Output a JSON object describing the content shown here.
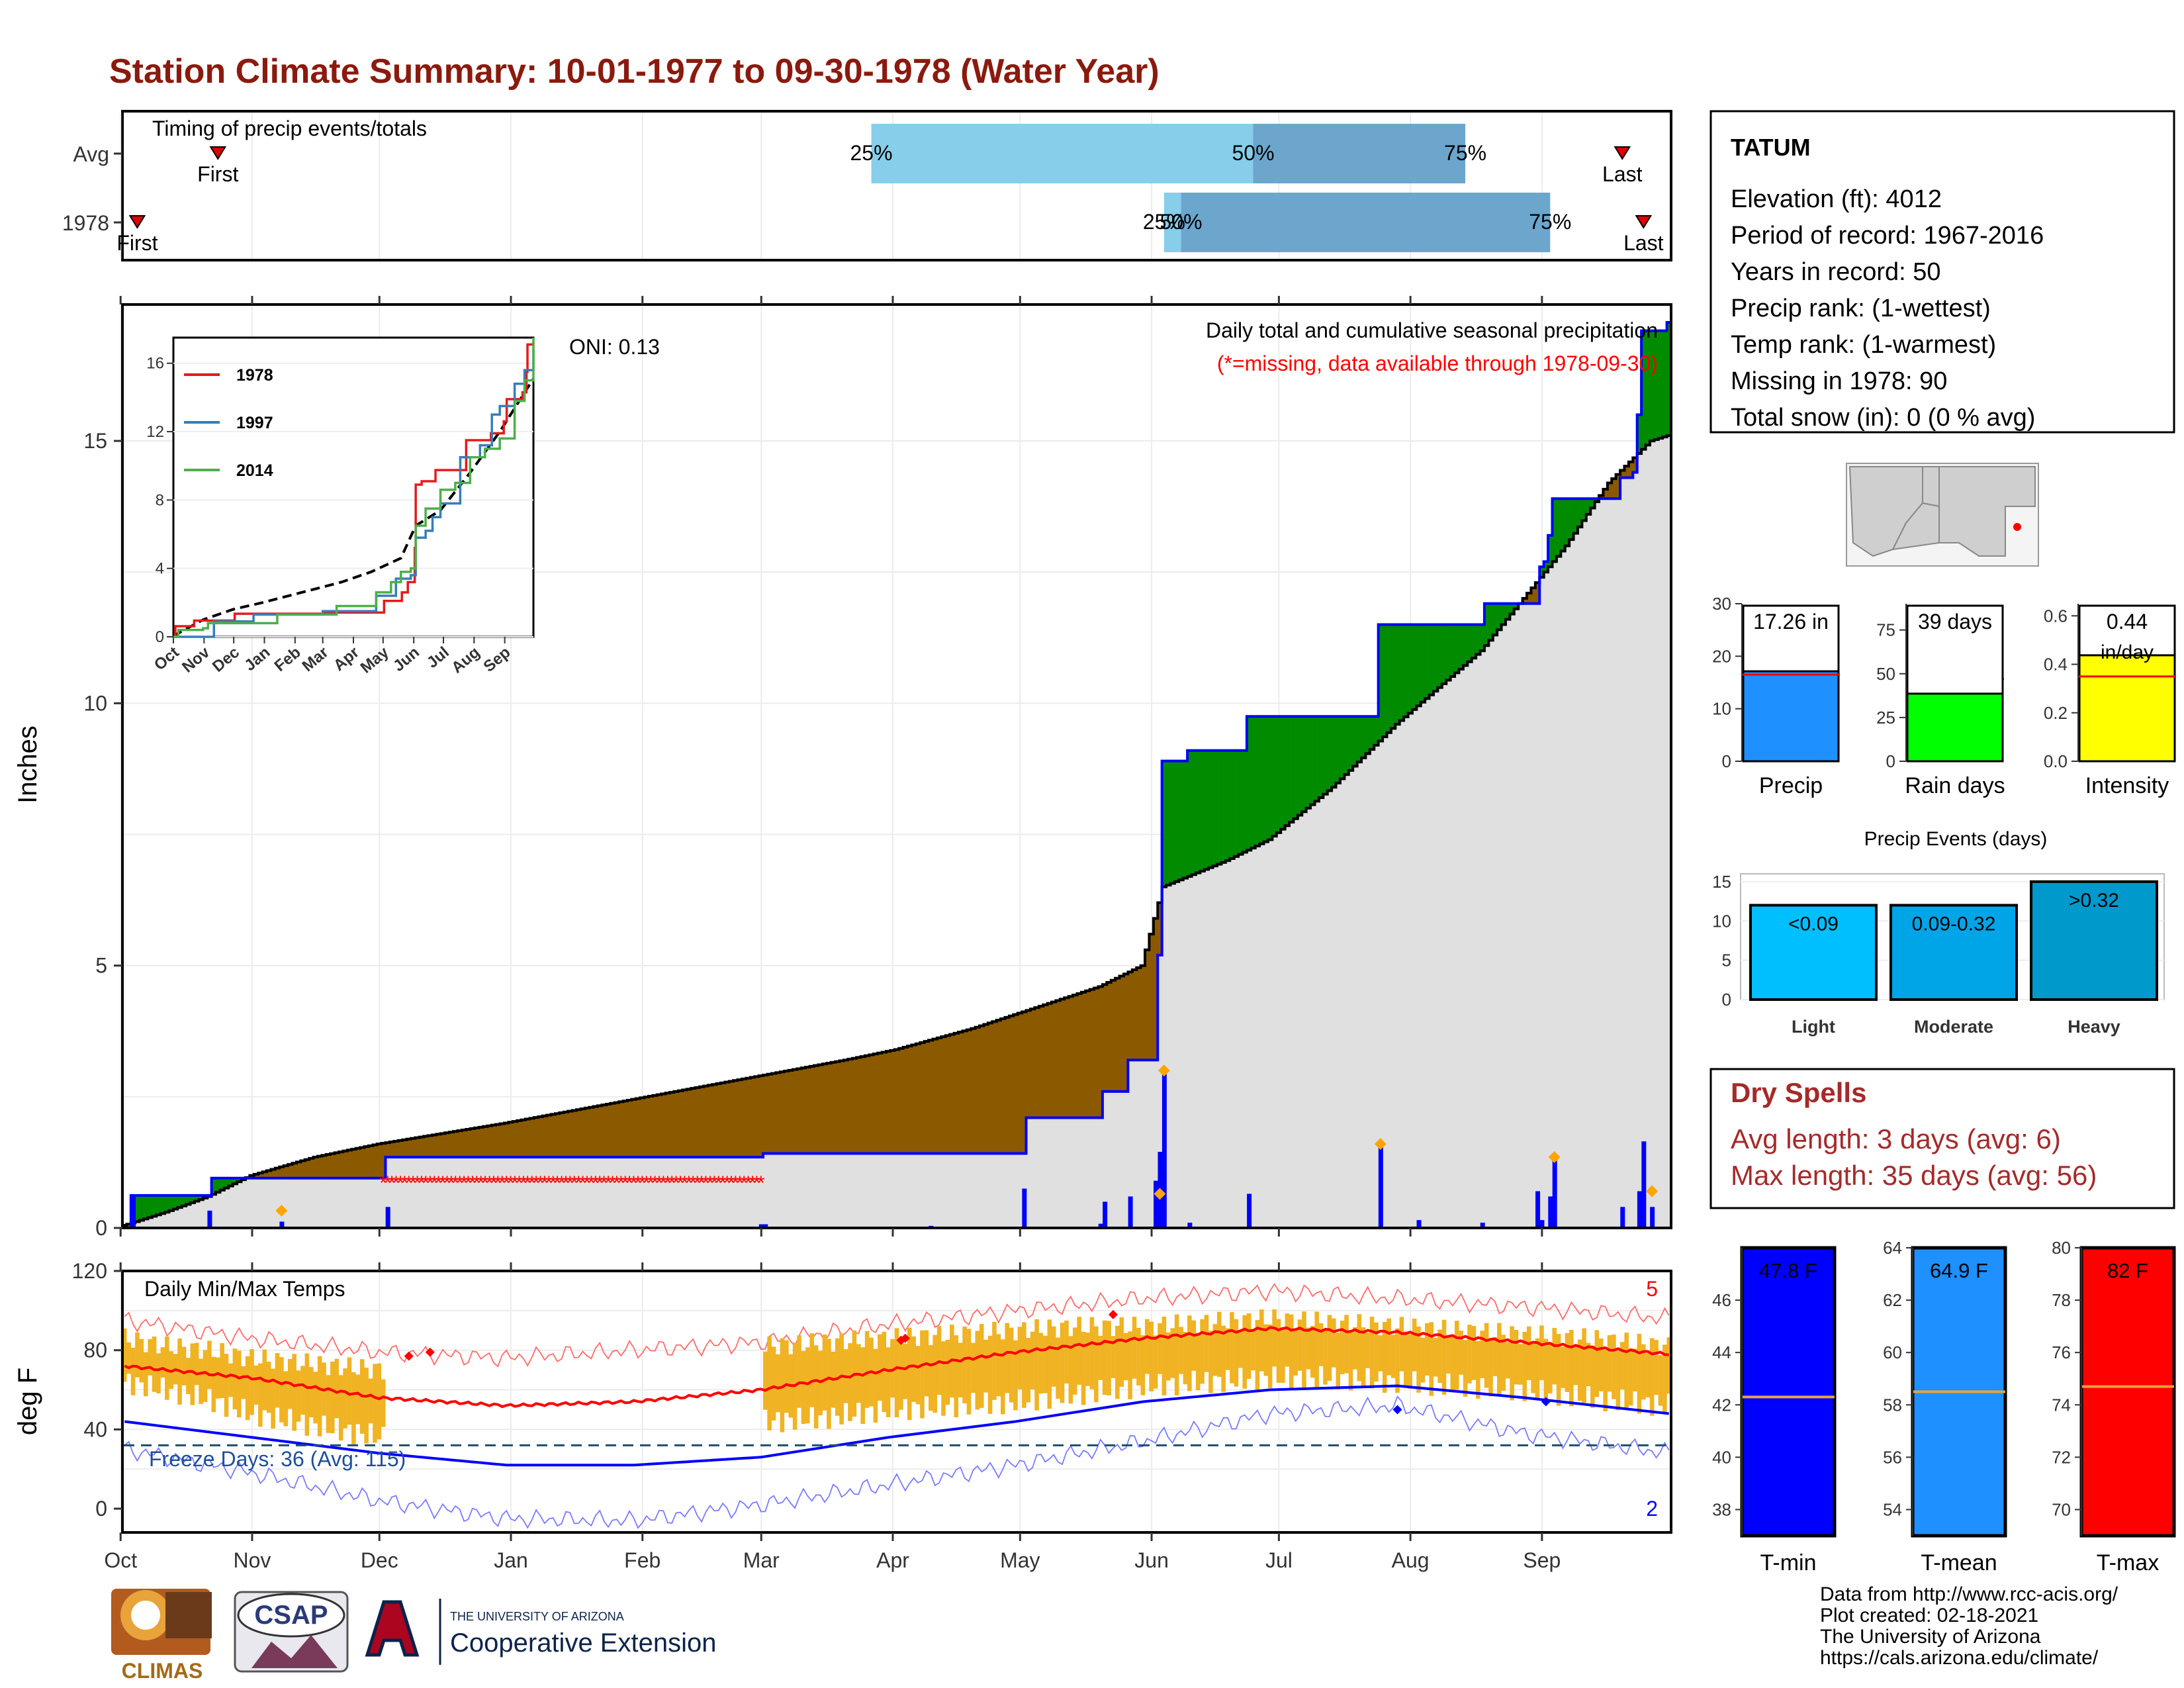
{
  "page": {
    "title": "Station Climate Summary: 10-01-1977 to 09-30-1978 (Water Year)",
    "title_color": "#8B1A0E"
  },
  "timing": {
    "label": "Timing of precip events/totals",
    "rows": [
      {
        "name": "Avg",
        "first_label": "First",
        "last_label": "Last",
        "first_doy": 22,
        "last_doy": 353,
        "q25_doy": 176,
        "q50_doy": 266,
        "q75_doy": 316,
        "q25_label": "25%",
        "q50_label": "50%",
        "q75_label": "75%"
      },
      {
        "name": "1978",
        "first_label": "First",
        "last_label": "Last",
        "first_doy": 3,
        "last_doy": 358,
        "q25_doy": 245,
        "q50_doy": 249,
        "q75_doy": 336,
        "q25_label": "25%",
        "q50_label": "50%",
        "q75_label": "75%"
      }
    ],
    "light_color": "#87CEEB",
    "dark_color": "#6CA6CD"
  },
  "station": {
    "name": "TATUM",
    "lines": [
      "Elevation (ft): 4012",
      "Period of record: 1967-2016",
      "Years in record: 50",
      "Precip rank:  (1-wettest)",
      "Temp rank:  (1-warmest)",
      "Missing in 1978: 90",
      "Total snow (in): 0 (0 % avg)"
    ]
  },
  "months": [
    "Oct",
    "Nov",
    "Dec",
    "Jan",
    "Feb",
    "Mar",
    "Apr",
    "May",
    "Jun",
    "Jul",
    "Aug",
    "Sep"
  ],
  "precip": {
    "ylabel": "Inches",
    "title": "Daily total and cumulative seasonal precipitation",
    "subtitle": "(*=missing, data available through 1978-09-30)",
    "oni": "ONI: 0.13",
    "ylim": [
      0,
      17.6
    ],
    "yticks": [
      0,
      5,
      10,
      15
    ],
    "above_color": "#008B00",
    "below_color": "#8B5A00",
    "fill_color": "#E0E0E0",
    "missing_start_doy": 61,
    "missing_end_doy": 150,
    "avg_cum": [
      [
        0,
        0.05
      ],
      [
        3,
        0.12
      ],
      [
        10,
        0.3
      ],
      [
        20,
        0.6
      ],
      [
        30,
        1.0
      ],
      [
        45,
        1.35
      ],
      [
        60,
        1.6
      ],
      [
        75,
        1.8
      ],
      [
        90,
        2.0
      ],
      [
        110,
        2.3
      ],
      [
        130,
        2.6
      ],
      [
        150,
        2.9
      ],
      [
        170,
        3.2
      ],
      [
        182,
        3.4
      ],
      [
        200,
        3.8
      ],
      [
        215,
        4.2
      ],
      [
        230,
        4.6
      ],
      [
        240,
        5.0
      ],
      [
        245,
        6.5
      ],
      [
        260,
        7.0
      ],
      [
        270,
        7.4
      ],
      [
        285,
        8.4
      ],
      [
        300,
        9.6
      ],
      [
        310,
        10.3
      ],
      [
        320,
        11.0
      ],
      [
        330,
        12.0
      ],
      [
        340,
        13.0
      ],
      [
        350,
        14.2
      ],
      [
        360,
        15.0
      ],
      [
        364,
        15.1
      ]
    ],
    "obs_cum": [
      [
        0,
        0
      ],
      [
        2,
        0.62
      ],
      [
        20,
        0.62
      ],
      [
        21,
        0.95
      ],
      [
        61,
        0.95
      ],
      [
        62,
        1.35
      ],
      [
        150,
        1.35
      ],
      [
        151,
        1.42
      ],
      [
        212,
        1.42
      ],
      [
        213,
        2.1
      ],
      [
        230,
        2.1
      ],
      [
        231,
        2.6
      ],
      [
        236,
        2.6
      ],
      [
        237,
        3.2
      ],
      [
        243,
        3.2
      ],
      [
        244,
        5.2
      ],
      [
        245,
        8.9
      ],
      [
        250,
        8.9
      ],
      [
        251,
        9.1
      ],
      [
        264,
        9.1
      ],
      [
        265,
        9.75
      ],
      [
        295,
        9.75
      ],
      [
        296,
        11.5
      ],
      [
        320,
        11.5
      ],
      [
        321,
        11.9
      ],
      [
        333,
        11.9
      ],
      [
        334,
        12.6
      ],
      [
        335,
        12.7
      ],
      [
        336,
        13.2
      ],
      [
        337,
        13.9
      ],
      [
        352,
        13.9
      ],
      [
        353,
        14.3
      ],
      [
        356,
        14.4
      ],
      [
        357,
        15.5
      ],
      [
        358,
        17.1
      ],
      [
        364,
        17.26
      ]
    ],
    "daily_bars": [
      [
        2,
        0.62
      ],
      [
        20,
        0.33
      ],
      [
        37,
        0.12
      ],
      [
        62,
        0.4
      ],
      [
        150,
        0.07
      ],
      [
        151,
        0.07
      ],
      [
        190,
        0.04
      ],
      [
        212,
        0.75
      ],
      [
        230,
        0.08
      ],
      [
        231,
        0.5
      ],
      [
        237,
        0.6
      ],
      [
        243,
        0.9
      ],
      [
        244,
        1.45
      ],
      [
        245,
        3.0
      ],
      [
        251,
        0.1
      ],
      [
        265,
        0.65
      ],
      [
        296,
        1.6
      ],
      [
        305,
        0.15
      ],
      [
        320,
        0.1
      ],
      [
        333,
        0.7
      ],
      [
        334,
        0.15
      ],
      [
        336,
        0.6
      ],
      [
        337,
        1.35
      ],
      [
        353,
        0.4
      ],
      [
        357,
        0.7
      ],
      [
        358,
        1.65
      ],
      [
        360,
        0.4
      ]
    ],
    "diamonds": [
      [
        37,
        0.33,
        "#FFA500"
      ],
      [
        245,
        3.0,
        "#FFA500"
      ],
      [
        244,
        0.65,
        "#FFA500"
      ],
      [
        296,
        1.6,
        "#FFA500"
      ],
      [
        337,
        1.35,
        "#FFA500"
      ],
      [
        360,
        0.7,
        "#FFA500"
      ]
    ]
  },
  "inset": {
    "yticks": [
      0,
      4,
      8,
      12,
      16
    ],
    "ylim": [
      0,
      17.5
    ],
    "legend": [
      {
        "name": "1978",
        "color": "#E41A1C"
      },
      {
        "name": "1997",
        "color": "#377EB8"
      },
      {
        "name": "2014",
        "color": "#4DAF4A"
      }
    ],
    "avg_color": "#000000",
    "series": {
      "1978": [
        [
          0,
          0
        ],
        [
          2,
          0.62
        ],
        [
          20,
          0.62
        ],
        [
          21,
          0.95
        ],
        [
          61,
          0.95
        ],
        [
          62,
          1.35
        ],
        [
          150,
          1.35
        ],
        [
          151,
          1.42
        ],
        [
          212,
          1.42
        ],
        [
          213,
          2.1
        ],
        [
          230,
          2.1
        ],
        [
          231,
          2.6
        ],
        [
          237,
          3.2
        ],
        [
          243,
          3.2
        ],
        [
          244,
          5.2
        ],
        [
          245,
          8.9
        ],
        [
          251,
          9.1
        ],
        [
          265,
          9.75
        ],
        [
          296,
          11.5
        ],
        [
          321,
          11.9
        ],
        [
          334,
          12.6
        ],
        [
          337,
          13.9
        ],
        [
          353,
          14.3
        ],
        [
          357,
          15.5
        ],
        [
          358,
          17.1
        ],
        [
          364,
          17.26
        ]
      ],
      "1997": [
        [
          0,
          0
        ],
        [
          40,
          0
        ],
        [
          41,
          0.9
        ],
        [
          80,
          0.9
        ],
        [
          81,
          1.3
        ],
        [
          150,
          1.3
        ],
        [
          151,
          1.5
        ],
        [
          200,
          1.5
        ],
        [
          205,
          2.4
        ],
        [
          220,
          2.4
        ],
        [
          225,
          3.4
        ],
        [
          240,
          3.6
        ],
        [
          245,
          5.8
        ],
        [
          255,
          6.2
        ],
        [
          262,
          7.0
        ],
        [
          270,
          7.8
        ],
        [
          290,
          10.5
        ],
        [
          310,
          11.2
        ],
        [
          322,
          13.0
        ],
        [
          330,
          13.5
        ],
        [
          345,
          14.8
        ],
        [
          355,
          15.6
        ],
        [
          364,
          16.8
        ]
      ],
      "2014": [
        [
          0,
          0
        ],
        [
          5,
          0.4
        ],
        [
          30,
          0.5
        ],
        [
          35,
          0.8
        ],
        [
          100,
          0.8
        ],
        [
          105,
          1.3
        ],
        [
          160,
          1.3
        ],
        [
          165,
          1.8
        ],
        [
          200,
          1.8
        ],
        [
          205,
          2.6
        ],
        [
          220,
          3.2
        ],
        [
          230,
          3.8
        ],
        [
          240,
          4.0
        ],
        [
          245,
          6.5
        ],
        [
          255,
          7.5
        ],
        [
          270,
          8.6
        ],
        [
          285,
          9.0
        ],
        [
          300,
          10.5
        ],
        [
          315,
          11.0
        ],
        [
          330,
          11.6
        ],
        [
          345,
          13.8
        ],
        [
          355,
          15.0
        ],
        [
          364,
          17.5
        ]
      ],
      "avg": [
        [
          0,
          0.05
        ],
        [
          30,
          1.0
        ],
        [
          60,
          1.6
        ],
        [
          90,
          2.0
        ],
        [
          130,
          2.6
        ],
        [
          170,
          3.2
        ],
        [
          200,
          3.8
        ],
        [
          230,
          4.6
        ],
        [
          245,
          6.5
        ],
        [
          270,
          7.4
        ],
        [
          300,
          9.6
        ],
        [
          330,
          12.0
        ],
        [
          364,
          15.1
        ]
      ]
    }
  },
  "minibars": {
    "precip": {
      "label": "Precip",
      "value_label": "17.26 in",
      "value": 17.26,
      "avg": 16.5,
      "ylim": [
        0,
        30
      ],
      "yticks": [
        0,
        10,
        20,
        30
      ],
      "color": "#1E90FF"
    },
    "raindays": {
      "label": "Rain days",
      "value_label": "39 days",
      "value": 39,
      "avg": 47,
      "ylim": [
        0,
        90
      ],
      "yticks": [
        0,
        25,
        50,
        75
      ],
      "color": "#00FF00"
    },
    "intensity": {
      "label": "Intensity",
      "value_label": "0.44",
      "value_unit": "in/day",
      "value": 0.44,
      "avg": 0.35,
      "ylim": [
        0,
        0.65
      ],
      "yticks": [
        "0.0",
        "0.2",
        "0.4",
        "0.6"
      ],
      "color": "#FFFF00"
    }
  },
  "events": {
    "title": "Precip Events (days)",
    "ylim": [
      0,
      16
    ],
    "yticks": [
      0,
      5,
      10,
      15
    ],
    "bars": [
      {
        "category": "Light",
        "value": 12,
        "label": "<0.09",
        "color": "#00BFFF"
      },
      {
        "category": "Moderate",
        "value": 12,
        "label": "0.09-0.32",
        "color": "#00A5E8"
      },
      {
        "category": "Heavy",
        "value": 15,
        "label": ">0.32",
        "color": "#0099CC"
      }
    ]
  },
  "dryspells": {
    "title": "Dry Spells",
    "avg_line": "Avg length: 3 days (avg: 6)",
    "max_line": "Max length: 35 days (avg: 56)",
    "color": "#A52A2A"
  },
  "temps": {
    "ylabel": "deg F",
    "title": "Daily Min/Max Temps",
    "ylim": [
      -12,
      120
    ],
    "yticks": [
      0,
      40,
      80,
      120
    ],
    "freeze_label": "Freeze Days: 36 (Avg: 115)",
    "freeze_line": 32,
    "count_top": "5",
    "count_bottom": "2",
    "missing_start_doy": 62,
    "missing_end_doy": 150,
    "bar_color": "#F0B323",
    "avg_max": [
      [
        0,
        72
      ],
      [
        30,
        66
      ],
      [
        60,
        56
      ],
      [
        90,
        52
      ],
      [
        120,
        54
      ],
      [
        150,
        60
      ],
      [
        180,
        70
      ],
      [
        210,
        79
      ],
      [
        240,
        86
      ],
      [
        270,
        91
      ],
      [
        300,
        89
      ],
      [
        330,
        84
      ],
      [
        364,
        78
      ]
    ],
    "avg_min": [
      [
        0,
        44
      ],
      [
        30,
        36
      ],
      [
        60,
        28
      ],
      [
        90,
        22
      ],
      [
        120,
        22
      ],
      [
        150,
        26
      ],
      [
        180,
        36
      ],
      [
        210,
        44
      ],
      [
        240,
        54
      ],
      [
        270,
        60
      ],
      [
        300,
        62
      ],
      [
        330,
        56
      ],
      [
        364,
        48
      ]
    ],
    "rec_max": [
      [
        0,
        95
      ],
      [
        30,
        86
      ],
      [
        60,
        79
      ],
      [
        90,
        76
      ],
      [
        120,
        80
      ],
      [
        150,
        84
      ],
      [
        180,
        93
      ],
      [
        210,
        100
      ],
      [
        240,
        106
      ],
      [
        270,
        110
      ],
      [
        300,
        106
      ],
      [
        330,
        102
      ],
      [
        364,
        96
      ]
    ],
    "rec_min": [
      [
        0,
        30
      ],
      [
        30,
        18
      ],
      [
        60,
        4
      ],
      [
        90,
        -5
      ],
      [
        120,
        -6
      ],
      [
        150,
        2
      ],
      [
        180,
        12
      ],
      [
        210,
        22
      ],
      [
        240,
        34
      ],
      [
        270,
        48
      ],
      [
        300,
        52
      ],
      [
        330,
        38
      ],
      [
        364,
        28
      ]
    ],
    "obs_segments": [
      [
        [
          0,
          64,
          86
        ],
        [
          10,
          60,
          82
        ],
        [
          20,
          55,
          80
        ],
        [
          30,
          48,
          76
        ],
        [
          40,
          44,
          74
        ],
        [
          50,
          40,
          72
        ],
        [
          61,
          36,
          70
        ]
      ],
      [
        [
          151,
          44,
          82
        ],
        [
          165,
          46,
          84
        ],
        [
          180,
          50,
          86
        ],
        [
          195,
          52,
          88
        ],
        [
          210,
          54,
          90
        ],
        [
          225,
          58,
          92
        ],
        [
          240,
          62,
          92
        ],
        [
          255,
          64,
          94
        ],
        [
          270,
          66,
          96
        ],
        [
          285,
          66,
          94
        ],
        [
          300,
          64,
          92
        ],
        [
          315,
          62,
          90
        ],
        [
          330,
          60,
          88
        ],
        [
          345,
          56,
          86
        ],
        [
          364,
          52,
          82
        ]
      ]
    ]
  },
  "tempbars": [
    {
      "label": "T-min",
      "value_label": "47.8 F",
      "value": 47.8,
      "avg": 42.3,
      "ylim": [
        37,
        48
      ],
      "yticks": [
        38,
        40,
        42,
        44,
        46
      ],
      "color": "#0000FF"
    },
    {
      "label": "T-mean",
      "value_label": "64.9 F",
      "value": 64.9,
      "avg": 58.5,
      "ylim": [
        53,
        64
      ],
      "yticks": [
        54,
        56,
        58,
        60,
        62,
        64
      ],
      "color": "#1E90FF"
    },
    {
      "label": "T-max",
      "value_label": "82 F",
      "value": 82,
      "avg": 74.7,
      "ylim": [
        69,
        80
      ],
      "yticks": [
        70,
        72,
        74,
        76,
        78,
        80
      ],
      "color": "#FF0000"
    }
  ],
  "footer": {
    "credits": [
      "Data from http://www.rcc-acis.org/",
      "Plot created: 02-18-2021",
      "The University of Arizona",
      "https://cals.arizona.edu/climate/"
    ],
    "climas": "CLIMAS",
    "csap": "CSAP",
    "ua_small": "THE UNIVERSITY OF ARIZONA",
    "ua_big": "Cooperative Extension"
  }
}
